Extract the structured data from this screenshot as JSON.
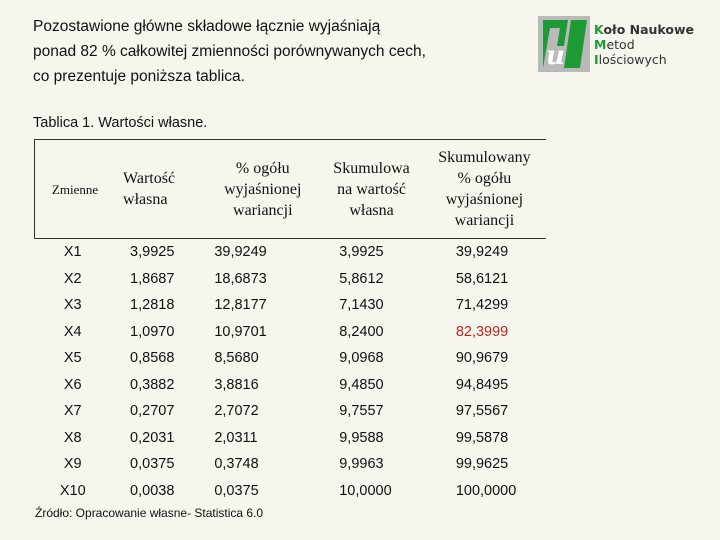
{
  "intro": {
    "line1": "Pozostawione główne składowe łącznie wyjaśniają",
    "line2": "ponad 82 % całkowitej zmienności porównywanych cech,",
    "line3": "co prezentuje poniższa tablica."
  },
  "logo": {
    "mark_letter": "u",
    "line1_first": "K",
    "line1_rest": "oło Naukowe",
    "line2_first": "M",
    "line2_rest": "etod",
    "line3_first": "I",
    "line3_rest": "lościowych",
    "colors": {
      "green": "#1e9a35",
      "grey": "#b9b9b9",
      "white": "#ffffff"
    }
  },
  "caption": "Tablica 1. Wartości własne.",
  "table": {
    "headers": [
      {
        "lines": [
          "Zmienne"
        ]
      },
      {
        "lines": [
          "Wartość",
          "własna"
        ]
      },
      {
        "lines": [
          "% ogółu",
          "wyjaśnionej",
          "wariancji"
        ]
      },
      {
        "lines": [
          "Skumulowa",
          "na wartość",
          "własna"
        ]
      },
      {
        "lines": [
          "Skumulowany",
          "% ogółu",
          "wyjaśnionej",
          "wariancji"
        ]
      }
    ],
    "rows": [
      [
        "X1",
        "3,9925",
        "39,9249",
        "3,9925",
        "39,9249"
      ],
      [
        "X2",
        "1,8687",
        "18,6873",
        "5,8612",
        "58,6121"
      ],
      [
        "X3",
        "1,2818",
        "12,8177",
        "7,1430",
        "71,4299"
      ],
      [
        "X4",
        "1,0970",
        "10,9701",
        "8,2400",
        "82,3999"
      ],
      [
        "X5",
        "0,8568",
        "8,5680",
        "9,0968",
        "90,9679"
      ],
      [
        "X6",
        "0,3882",
        "3,8816",
        "9,4850",
        "94,8495"
      ],
      [
        "X7",
        "0,2707",
        "2,7072",
        "9,7557",
        "97,5567"
      ],
      [
        "X8",
        "0,2031",
        "2,0311",
        "9,9588",
        "99,5878"
      ],
      [
        "X9",
        "0,0375",
        "0,3748",
        "9,9963",
        "99,9625"
      ],
      [
        "X10",
        "0,0038",
        "0,0375",
        "10,0000",
        "100,0000"
      ]
    ],
    "highlight": {
      "row": 3,
      "col": 4,
      "color": "#c0261a"
    }
  },
  "source": "Źródło: Opracowanie własne- Statistica 6.0"
}
